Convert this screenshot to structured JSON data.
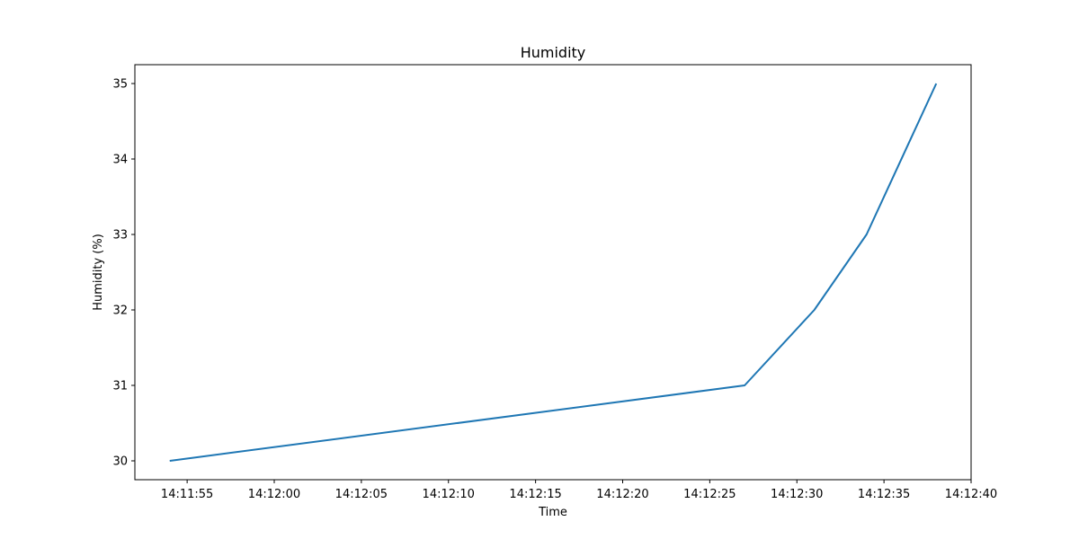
{
  "chart_data": {
    "type": "line",
    "title": "Humidity",
    "xlabel": "Time",
    "ylabel": "Humidity (%)",
    "x": [
      "14:11:54",
      "14:12:27",
      "14:12:31",
      "14:12:34",
      "14:12:38"
    ],
    "series": [
      {
        "values": [
          30,
          31,
          32,
          33,
          35
        ],
        "color": "#1f77b4"
      }
    ],
    "xlim": [
      "14:11:52",
      "14:12:40"
    ],
    "ylim": [
      29.75,
      35.25
    ],
    "xticks": [
      "14:11:55",
      "14:12:00",
      "14:12:05",
      "14:12:10",
      "14:12:15",
      "14:12:20",
      "14:12:25",
      "14:12:30",
      "14:12:35",
      "14:12:40"
    ],
    "yticks": [
      30,
      31,
      32,
      33,
      34,
      35
    ],
    "grid": false,
    "legend": "none"
  }
}
